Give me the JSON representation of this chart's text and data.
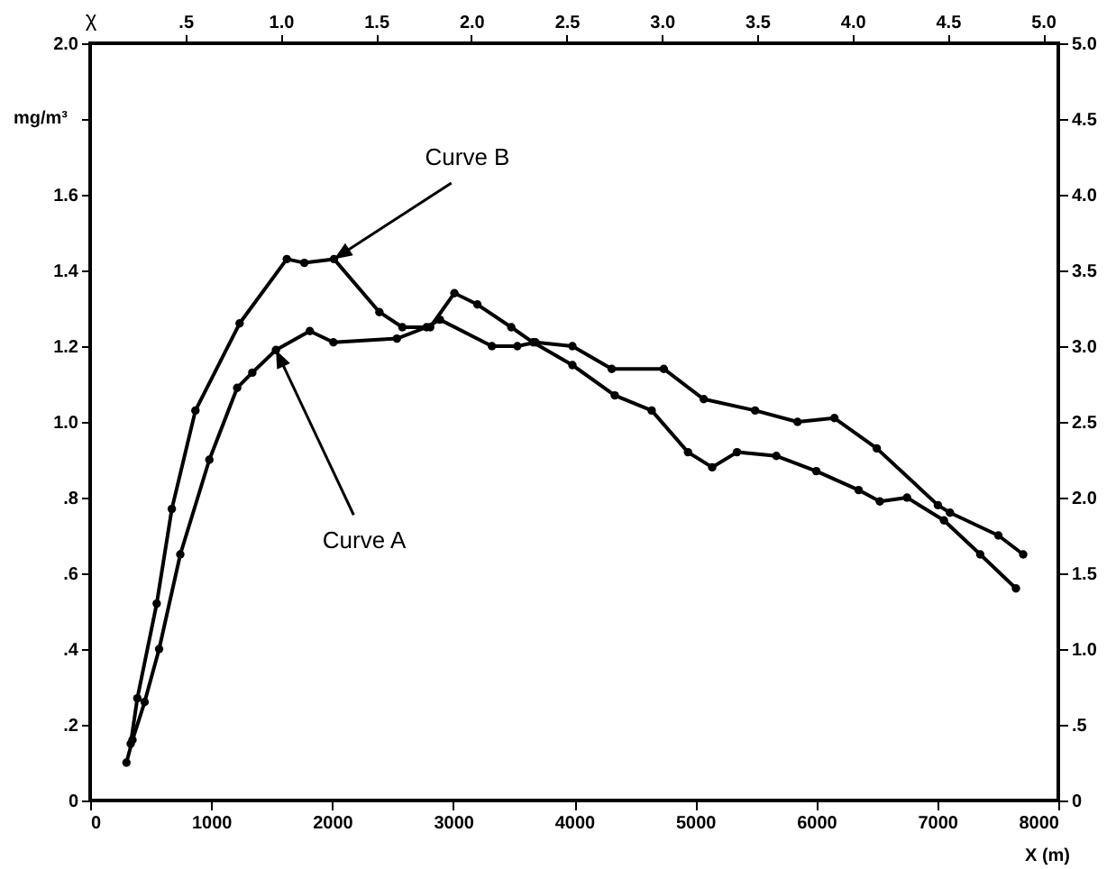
{
  "chart_data": {
    "type": "line",
    "xlabel": "X (m)",
    "ylabel": "mg/m³",
    "x2label": "χ",
    "xlim": [
      0,
      8000
    ],
    "xticks": [
      0,
      1000,
      2000,
      3000,
      4000,
      5000,
      6000,
      7000,
      8000
    ],
    "ylim": [
      0,
      2.0
    ],
    "yticks": [
      0,
      {
        "value": 0.2,
        "label": ".2"
      },
      {
        "value": 0.4,
        "label": ".4"
      },
      {
        "value": 0.6,
        "label": ".6"
      },
      {
        "value": 0.8,
        "label": ".8"
      },
      {
        "value": 1.0,
        "label": "1.0"
      },
      {
        "value": 1.2,
        "label": "1.2"
      },
      {
        "value": 1.4,
        "label": "1.4"
      },
      {
        "value": 1.6,
        "label": "1.6"
      },
      {
        "value": 1.8,
        "label": null
      },
      {
        "value": 2.0,
        "label": "2.0"
      }
    ],
    "y2lim": [
      0,
      5.0
    ],
    "y2ticks": [
      0,
      {
        "value": 0.5,
        "label": ".5"
      },
      {
        "value": 1.0,
        "label": "1.0"
      },
      {
        "value": 1.5,
        "label": "1.5"
      },
      {
        "value": 2.0,
        "label": "2.0"
      },
      {
        "value": 2.5,
        "label": "2.5"
      },
      {
        "value": 3.0,
        "label": "3.0"
      },
      {
        "value": 3.5,
        "label": "3.5"
      },
      {
        "value": 4.0,
        "label": "4.0"
      },
      {
        "value": 4.5,
        "label": "4.5"
      },
      {
        "value": 5.0,
        "label": "5.0"
      }
    ],
    "x2lim": [
      0,
      5.08
    ],
    "x2ticks": [
      {
        "value": 0.5,
        "label": ".5"
      },
      {
        "value": 1.0,
        "label": "1.0"
      },
      {
        "value": 1.5,
        "label": "1.5"
      },
      {
        "value": 2.0,
        "label": "2.0"
      },
      {
        "value": 2.5,
        "label": "2.5"
      },
      {
        "value": 3.0,
        "label": "3.0"
      },
      {
        "value": 3.5,
        "label": "3.5"
      },
      {
        "value": 4.0,
        "label": "4.0"
      },
      {
        "value": 4.5,
        "label": "4.5"
      },
      {
        "value": 5.0,
        "label": "5.0"
      }
    ],
    "grid": false,
    "marker": "circle",
    "line_style": "solid",
    "series": [
      {
        "color": "#000000",
        "x": [
          300,
          350,
          450,
          570,
          745,
          985,
          1215,
          1340,
          1535,
          1815,
          2010,
          2535,
          2780,
          2890,
          3320,
          3530,
          3680,
          3985,
          4310,
          4740,
          5070,
          5495,
          5845,
          6150,
          6500,
          7005,
          7105,
          7505,
          7710
        ],
        "values": [
          0.1,
          0.16,
          0.26,
          0.4,
          0.65,
          0.9,
          1.09,
          1.13,
          1.19,
          1.24,
          1.21,
          1.22,
          1.25,
          1.27,
          1.2,
          1.2,
          1.21,
          1.2,
          1.14,
          1.14,
          1.06,
          1.03,
          1.0,
          1.01,
          0.93,
          0.78,
          0.76,
          0.7,
          0.65
        ]
      },
      {
        "color": "#000000",
        "x": [
          335,
          390,
          550,
          675,
          870,
          1235,
          1625,
          1770,
          2015,
          2390,
          2580,
          2810,
          3010,
          3200,
          3480,
          3660,
          3985,
          4335,
          4640,
          4940,
          5140,
          5345,
          5670,
          6000,
          6350,
          6525,
          6750,
          7055,
          7355,
          7650
        ],
        "values": [
          0.15,
          0.27,
          0.52,
          0.77,
          1.03,
          1.26,
          1.43,
          1.42,
          1.43,
          1.29,
          1.25,
          1.25,
          1.34,
          1.31,
          1.25,
          1.21,
          1.15,
          1.07,
          1.03,
          0.92,
          0.88,
          0.92,
          0.91,
          0.87,
          0.82,
          0.79,
          0.8,
          0.74,
          0.65,
          0.56
        ]
      }
    ],
    "annotations": [
      {
        "text": "Curve A",
        "x": 1535,
        "y": 1.19
      },
      {
        "text": "Curve B",
        "x": 2015,
        "y": 1.43
      }
    ]
  }
}
